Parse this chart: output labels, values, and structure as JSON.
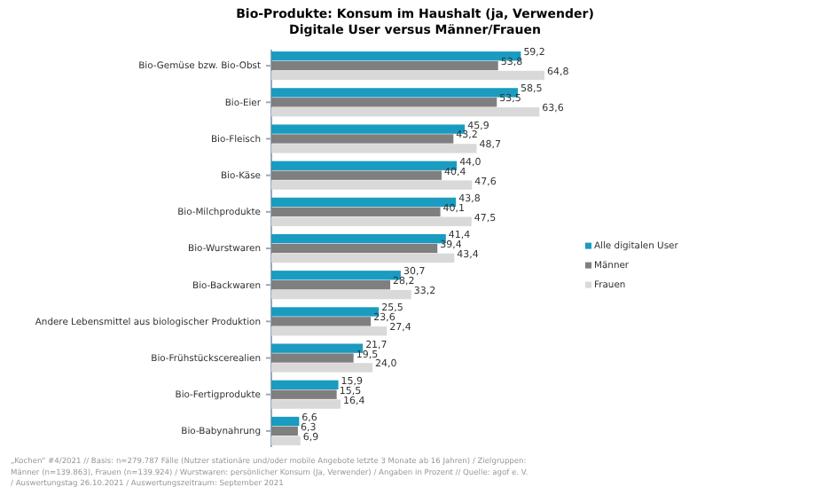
{
  "chart_data": {
    "type": "bar",
    "orientation": "horizontal",
    "title": "Bio-Produkte: Konsum im Haushalt  (ja, Verwender)",
    "subtitle": "Digitale User versus Männer/Frauen",
    "categories": [
      "Bio-Gemüse bzw. Bio-Obst",
      "Bio-Eier",
      "Bio-Fleisch",
      "Bio-Käse",
      "Bio-Milchprodukte",
      "Bio-Wurstwaren",
      "Bio-Backwaren",
      "Andere Lebensmittel aus biologischer Produktion",
      "Bio-Frühstückscerealien",
      "Bio-Fertigprodukte",
      "Bio-Babynahrung"
    ],
    "series": [
      {
        "name": "Alle digitalen User",
        "color": "#1a9bc0",
        "values": [
          59.2,
          58.5,
          45.9,
          44.0,
          43.8,
          41.4,
          30.7,
          25.5,
          21.7,
          15.9,
          6.6
        ],
        "value_labels": [
          "59,2",
          "58,5",
          "45,9",
          "44,0",
          "43,8",
          "41,4",
          "30,7",
          "25,5",
          "21,7",
          "15,9",
          "6,6"
        ]
      },
      {
        "name": "Männer",
        "color": "#7f7f7f",
        "values": [
          53.8,
          53.5,
          43.2,
          40.4,
          40.1,
          39.4,
          28.2,
          23.6,
          19.5,
          15.5,
          6.3
        ],
        "value_labels": [
          "53,8",
          "53,5",
          "43,2",
          "40,4",
          "40,1",
          "39,4",
          "28,2",
          "23,6",
          "19,5",
          "15,5",
          "6,3"
        ]
      },
      {
        "name": "Frauen",
        "color": "#d9d9d9",
        "values": [
          64.8,
          63.6,
          48.7,
          47.6,
          47.5,
          43.4,
          33.2,
          27.4,
          24.0,
          16.4,
          6.9
        ],
        "value_labels": [
          "64,8",
          "63,6",
          "48,7",
          "47,6",
          "47,5",
          "43,4",
          "33,2",
          "27,4",
          "24,0",
          "16,4",
          "6,9"
        ]
      }
    ],
    "legend": "right",
    "annotations": [
      "„Kochen“ #4/2021  // Basis: n=279.787  Fälle (Nutzer stationäre und/oder mobile Angebote letzte 3 Monate ab 16 Jahren) / Zielgruppen:",
      "Männer (n=139.863),  Frauen (n=139.924)  / Wurstwaren: persönlicher Konsum (Ja, Verwender) / Angaben in Prozent  // Quelle: agof e. V.",
      "/ Auswertungstag 26.10.2021  / Auswertungszeitraum: September  2021"
    ]
  }
}
